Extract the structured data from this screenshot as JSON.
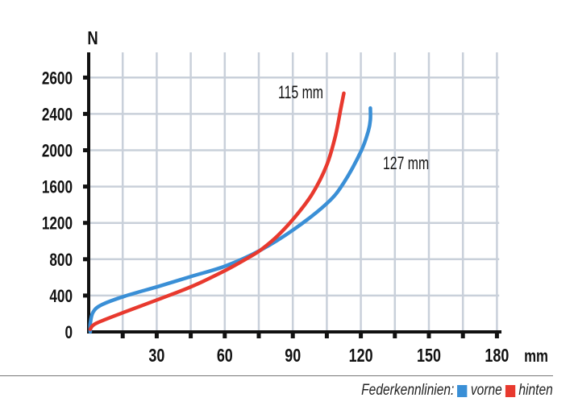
{
  "chart_data": {
    "type": "line",
    "ylabel": "N",
    "xlabel": "mm",
    "x_tick_labels": [
      "30",
      "60",
      "90",
      "120",
      "150",
      "180"
    ],
    "x_ticks": [
      30,
      60,
      90,
      120,
      150,
      180
    ],
    "y_tick_labels": [
      "0",
      "400",
      "800",
      "1200",
      "1600",
      "2000",
      "2400",
      "2600"
    ],
    "xlim": [
      0,
      180
    ],
    "ylim": [
      0,
      2800
    ],
    "grid": true,
    "series": [
      {
        "name": "vorne",
        "color": "#3a8fd6",
        "end_label": "127 mm",
        "x": [
          0.7,
          0.7,
          2,
          5.8,
          16,
          31.2,
          45.8,
          60.4,
          75.7,
          90.9,
          105.3,
          112.5,
          120.1,
          123.3,
          124.2,
          124.2
        ],
        "y": [
          0,
          94,
          220,
          299,
          394,
          504,
          615,
          726,
          899,
          1136,
          1421,
          1643,
          1990,
          2212,
          2337,
          2464
        ]
      },
      {
        "name": "hinten",
        "color": "#e8392e",
        "end_label": "115 mm",
        "x": [
          0.7,
          3.3,
          16,
          31.2,
          45.8,
          60.4,
          70.6,
          75.7,
          83.3,
          90.9,
          98.5,
          104.9,
          108.7,
          111.2,
          112.5
        ],
        "y": [
          30,
          94,
          220,
          362,
          504,
          678,
          820,
          899,
          1058,
          1263,
          1516,
          1832,
          2148,
          2464,
          2628
        ]
      }
    ]
  },
  "legend": {
    "title": "Federkennlinien:",
    "items": [
      "vorne",
      "hinten"
    ]
  }
}
